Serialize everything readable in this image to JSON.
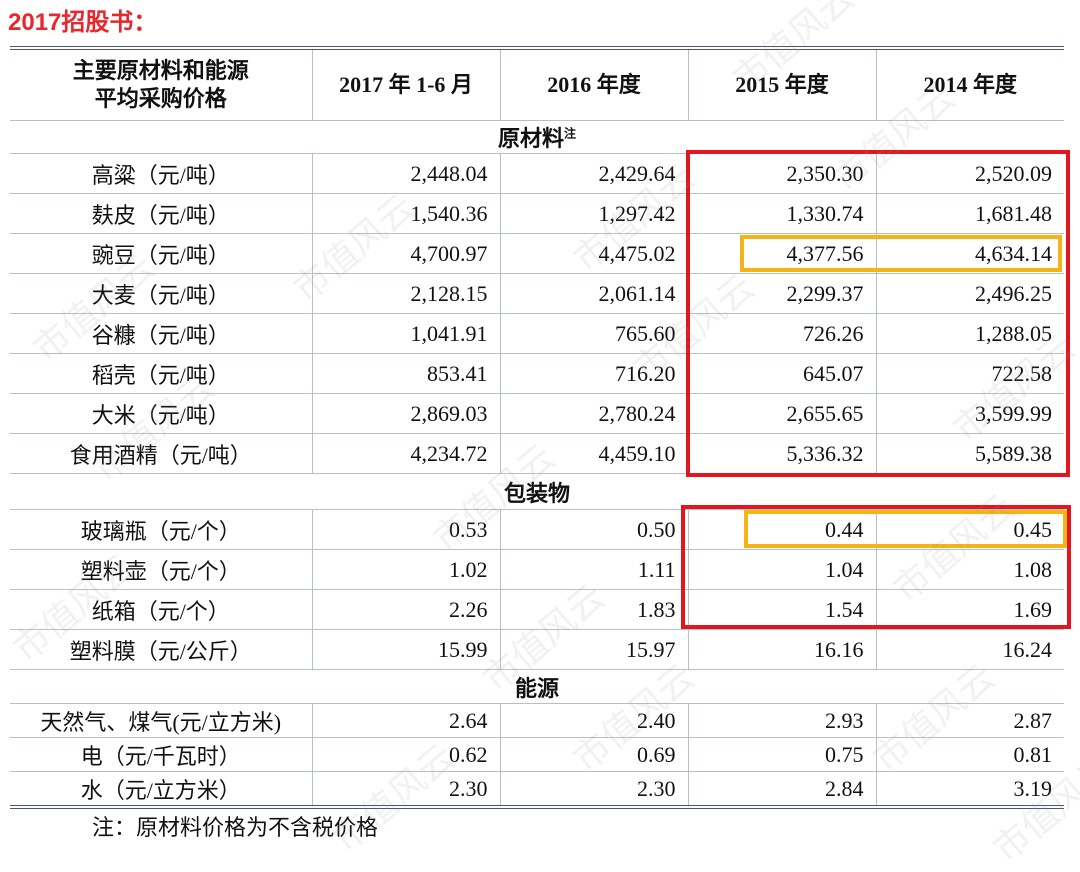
{
  "title": "2017招股书：",
  "watermark": "市值风云",
  "table": {
    "header": {
      "label_lines": [
        "主要原材料和能源",
        "平均采购价格"
      ],
      "columns": [
        "2017 年 1-6 月",
        "2016 年度",
        "2015 年度",
        "2014 年度"
      ]
    },
    "sections": [
      {
        "name": "原材料",
        "note": "注",
        "rows": [
          {
            "label": "高粱（元/吨）",
            "values": [
              "2,448.04",
              "2,429.64",
              "2,350.30",
              "2,520.09"
            ]
          },
          {
            "label": "麸皮（元/吨）",
            "values": [
              "1,540.36",
              "1,297.42",
              "1,330.74",
              "1,681.48"
            ]
          },
          {
            "label": "豌豆（元/吨）",
            "values": [
              "4,700.97",
              "4,475.02",
              "4,377.56",
              "4,634.14"
            ]
          },
          {
            "label": "大麦（元/吨）",
            "values": [
              "2,128.15",
              "2,061.14",
              "2,299.37",
              "2,496.25"
            ]
          },
          {
            "label": "谷糠（元/吨）",
            "values": [
              "1,041.91",
              "765.60",
              "726.26",
              "1,288.05"
            ]
          },
          {
            "label": "稻壳（元/吨）",
            "values": [
              "853.41",
              "716.20",
              "645.07",
              "722.58"
            ]
          },
          {
            "label": "大米（元/吨）",
            "values": [
              "2,869.03",
              "2,780.24",
              "2,655.65",
              "3,599.99"
            ]
          },
          {
            "label": "食用酒精（元/吨）",
            "values": [
              "4,234.72",
              "4,459.10",
              "5,336.32",
              "5,589.38"
            ]
          }
        ]
      },
      {
        "name": "包装物",
        "rows": [
          {
            "label": "玻璃瓶（元/个）",
            "values": [
              "0.53",
              "0.50",
              "0.44",
              "0.45"
            ]
          },
          {
            "label": "塑料壶（元/个）",
            "values": [
              "1.02",
              "1.11",
              "1.04",
              "1.08"
            ]
          },
          {
            "label": "纸箱（元/个）",
            "values": [
              "2.26",
              "1.83",
              "1.54",
              "1.69"
            ]
          },
          {
            "label": "塑料膜（元/公斤）",
            "values": [
              "15.99",
              "15.97",
              "16.16",
              "16.24"
            ]
          }
        ]
      },
      {
        "name": "能源",
        "rows": [
          {
            "label": "天然气、煤气(元/立方米)",
            "values": [
              "2.64",
              "2.40",
              "2.93",
              "2.87"
            ]
          },
          {
            "label": "电（元/千瓦时）",
            "values": [
              "0.62",
              "0.69",
              "0.75",
              "0.81"
            ]
          },
          {
            "label": "水（元/立方米）",
            "values": [
              "2.30",
              "2.30",
              "2.84",
              "3.19"
            ]
          }
        ]
      }
    ],
    "footnote": "注：原材料价格为不含税价格"
  }
}
